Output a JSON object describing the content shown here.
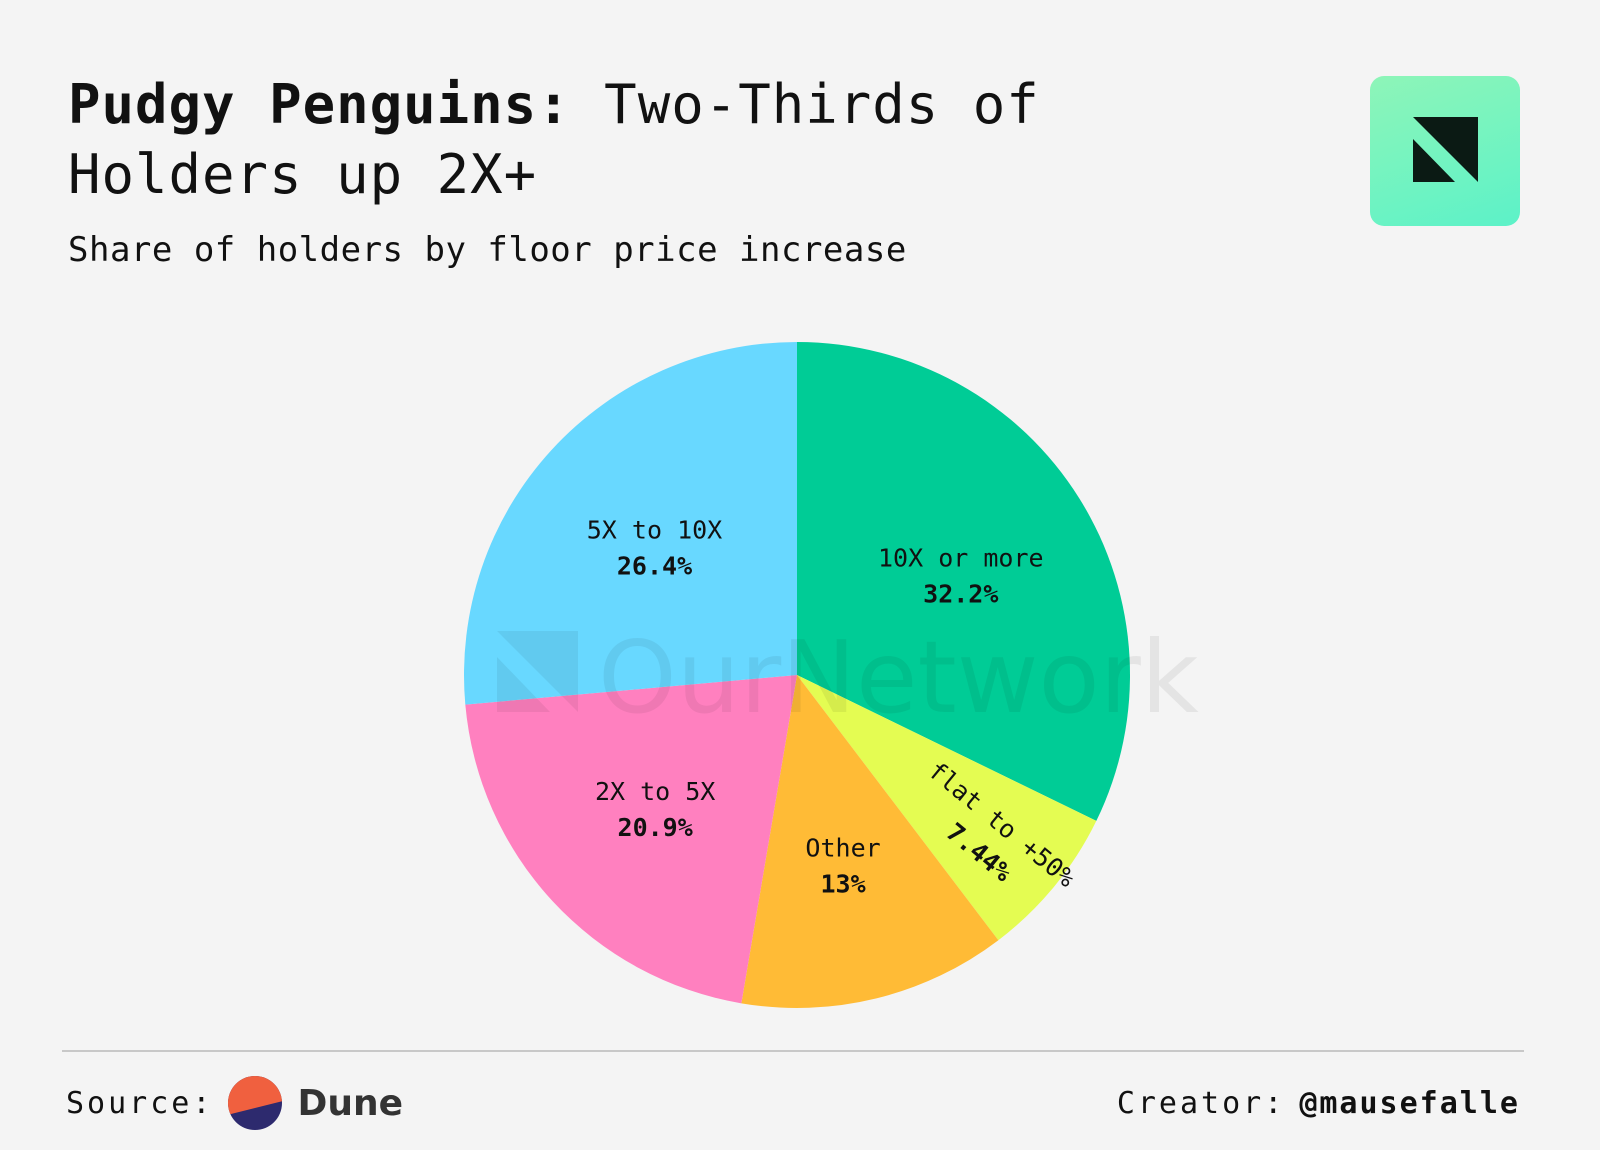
{
  "header": {
    "title_bold": "Pudgy Penguins:",
    "title_rest": " Two-Thirds of Holders up 2X+",
    "subtitle": "Share of holders by floor price increase"
  },
  "watermark": {
    "text": "OurNetwork"
  },
  "chart_data": {
    "type": "pie",
    "start_angle": "12 o'clock",
    "direction": "clockwise",
    "slices": [
      {
        "label": "10X or more",
        "value": 32.2,
        "value_label": "32.2%",
        "color": "#00cc96"
      },
      {
        "label": "flat to +50%",
        "value": 7.44,
        "value_label": "7.44%",
        "color": "#e4fc52"
      },
      {
        "label": "Other",
        "value": 13,
        "value_label": "13%",
        "color": "#ffbb36"
      },
      {
        "label": "2X to 5X",
        "value": 20.9,
        "value_label": "20.9%",
        "color": "#ff80bf"
      },
      {
        "label": "5X to 10X",
        "value": 26.4,
        "value_label": "26.4%",
        "color": "#68d8ff"
      }
    ]
  },
  "footer": {
    "source_label": "Source:",
    "source_name": "Dune",
    "creator_label": "Creator:",
    "creator_handle": "@mausefalle"
  }
}
